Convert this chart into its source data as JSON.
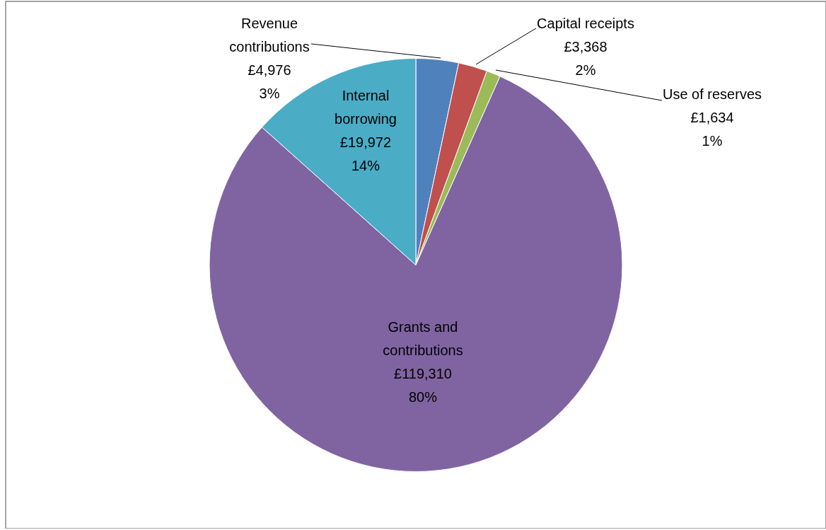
{
  "chart_data": {
    "type": "pie",
    "categories": [
      "Revenue contributions",
      "Capital receipts",
      "Use of reserves",
      "Grants and contributions",
      "Internal borrowing"
    ],
    "values": [
      4976,
      3368,
      1634,
      119310,
      19972
    ],
    "colors": [
      "#4f81bd",
      "#c0504d",
      "#9bbb59",
      "#8064a2",
      "#4bacc6"
    ],
    "value_labels": [
      "£4,976\n3%",
      "£3,368\n2%",
      "£1,634\n1%",
      "£119,310\n80%",
      "£19,972\n14%"
    ]
  }
}
